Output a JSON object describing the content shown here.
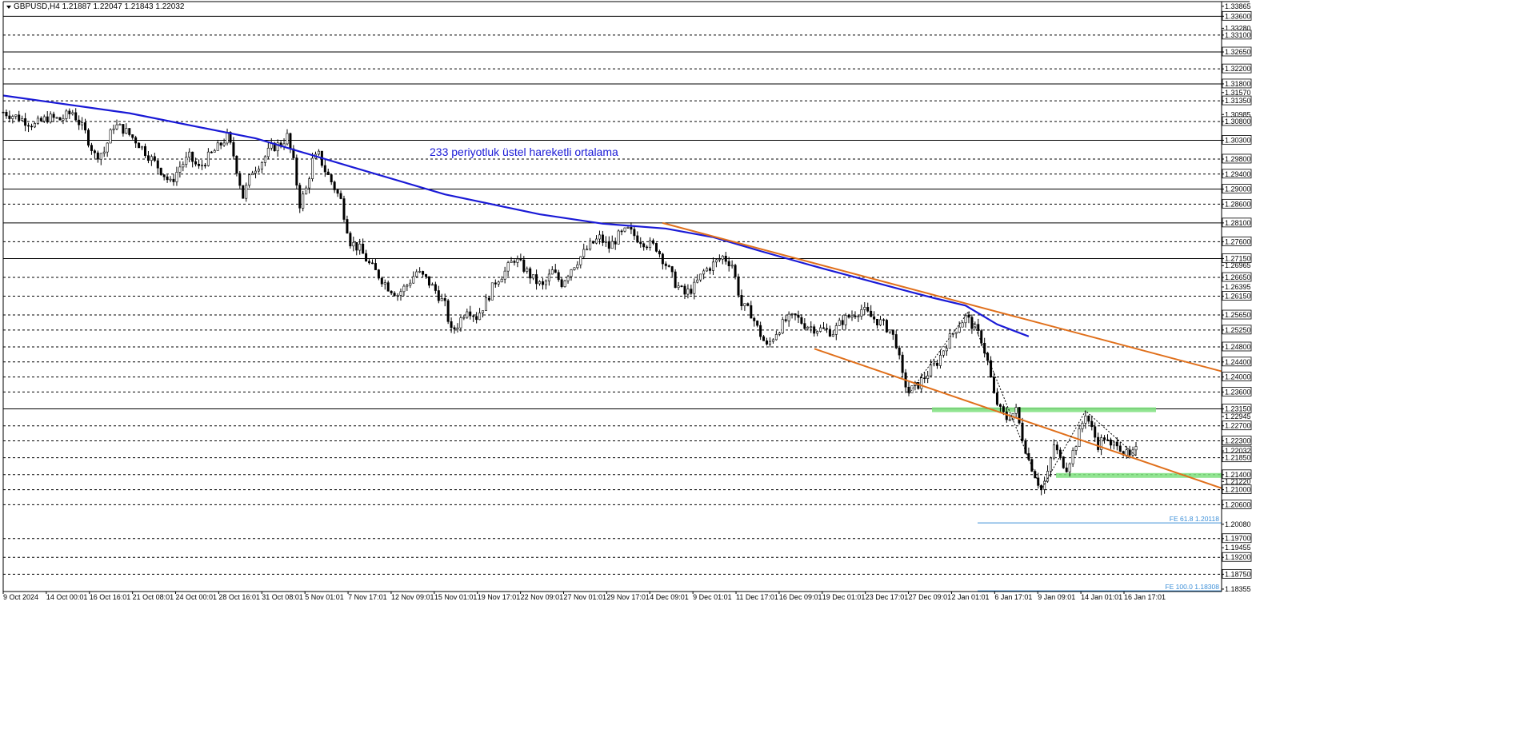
{
  "header": {
    "menu_icon": "triangle-down-icon",
    "symbol_info": "GBPUSD,H4  1.21887 1.22047 1.21843 1.22032"
  },
  "annotation_text": "233 periyotluk üstel hareketli ortalama",
  "chart_data": {
    "type": "candlestick",
    "symbol": "GBPUSD",
    "timeframe": "H4",
    "ohlc_last": {
      "open": 1.21887,
      "high": 1.22047,
      "low": 1.21843,
      "close": 1.22032
    },
    "ylim": [
      1.1835,
      1.33865
    ],
    "y_tick_labels": [
      "1.33865",
      "1.33600",
      "1.33280",
      "1.33100",
      "1.32650",
      "1.32200",
      "1.31800",
      "1.31570",
      "1.31350",
      "1.30985",
      "1.30800",
      "1.30300",
      "1.29800",
      "1.29400",
      "1.29000",
      "1.28600",
      "1.28100",
      "1.27600",
      "1.27150",
      "1.26965",
      "1.26650",
      "1.26395",
      "1.26150",
      "1.25650",
      "1.25250",
      "1.24800",
      "1.24400",
      "1.24000",
      "1.23600",
      "1.23150",
      "1.22945",
      "1.22700",
      "1.22300",
      "1.22032",
      "1.21850",
      "1.21400",
      "1.21220",
      "1.21000",
      "1.20600",
      "1.20080",
      "1.19700",
      "1.19455",
      "1.19200",
      "1.18750",
      "1.18355"
    ],
    "current_price": 1.22032,
    "x_tick_labels": [
      "9 Oct 2024",
      "14 Oct 00:01",
      "16 Oct 16:01",
      "21 Oct 08:01",
      "24 Oct 00:01",
      "28 Oct 16:01",
      "31 Oct 08:01",
      "5 Nov 01:01",
      "7 Nov 17:01",
      "12 Nov 09:01",
      "15 Nov 01:01",
      "19 Nov 17:01",
      "22 Nov 09:01",
      "27 Nov 01:01",
      "29 Nov 17:01",
      "4 Dec 09:01",
      "9 Dec 01:01",
      "11 Dec 17:01",
      "16 Dec 09:01",
      "19 Dec 01:01",
      "23 Dec 17:01",
      "27 Dec 09:01",
      "2 Jan 01:01",
      "6 Jan 17:01",
      "9 Jan 09:01",
      "14 Jan 01:01",
      "16 Jan 17:01"
    ],
    "solid_levels": [
      1.336,
      1.3265,
      1.318,
      1.303,
      1.29,
      1.281,
      1.2715,
      1.2315
    ],
    "dashed_levels": [
      1.331,
      1.322,
      1.3135,
      1.308,
      1.298,
      1.294,
      1.286,
      1.276,
      1.2665,
      1.2615,
      1.2565,
      1.2525,
      1.248,
      1.244,
      1.24,
      1.236,
      1.227,
      1.223,
      1.2185,
      1.214,
      1.21,
      1.206,
      1.197,
      1.192,
      1.1875
    ],
    "fib_levels": [
      {
        "label": "FE 61.8 1.20118",
        "price": 1.20118
      },
      {
        "label": "FE 100.0 1.18308",
        "price": 1.18308
      }
    ],
    "close_path": [
      [
        0,
        1.3105
      ],
      [
        5,
        1.309
      ],
      [
        10,
        1.307
      ],
      [
        14,
        1.309
      ],
      [
        18,
        1.3085
      ],
      [
        22,
        1.3105
      ],
      [
        26,
        1.305
      ],
      [
        29,
        1.299
      ],
      [
        32,
        1.3
      ],
      [
        35,
        1.307
      ],
      [
        38,
        1.306
      ],
      [
        42,
        1.303
      ],
      [
        46,
        1.299
      ],
      [
        50,
        1.295
      ],
      [
        53,
        1.2915
      ],
      [
        56,
        1.296
      ],
      [
        59,
        1.2985
      ],
      [
        62,
        1.2955
      ],
      [
        65,
        1.2985
      ],
      [
        68,
        1.301
      ],
      [
        71,
        1.304
      ],
      [
        73,
        1.299
      ],
      [
        76,
        1.288
      ],
      [
        79,
        1.295
      ],
      [
        82,
        1.2975
      ],
      [
        85,
        1.301
      ],
      [
        88,
        1.302
      ],
      [
        90,
        1.304
      ],
      [
        92,
        1.297
      ],
      [
        94,
        1.286
      ],
      [
        96,
        1.29
      ],
      [
        98,
        1.2975
      ],
      [
        100,
        1.299
      ],
      [
        102,
        1.295
      ],
      [
        104,
        1.292
      ],
      [
        107,
        1.287
      ],
      [
        110,
        1.276
      ],
      [
        113,
        1.274
      ],
      [
        116,
        1.27
      ],
      [
        119,
        1.267
      ],
      [
        122,
        1.264
      ],
      [
        125,
        1.262
      ],
      [
        128,
        1.2645
      ],
      [
        131,
        1.268
      ],
      [
        134,
        1.266
      ],
      [
        137,
        1.263
      ],
      [
        140,
        1.259
      ],
      [
        142,
        1.252
      ],
      [
        144,
        1.254
      ],
      [
        147,
        1.2585
      ],
      [
        150,
        1.256
      ],
      [
        153,
        1.26
      ],
      [
        156,
        1.2655
      ],
      [
        159,
        1.268
      ],
      [
        162,
        1.2715
      ],
      [
        165,
        1.269
      ],
      [
        168,
        1.266
      ],
      [
        171,
        1.264
      ],
      [
        174,
        1.268
      ],
      [
        177,
        1.265
      ],
      [
        180,
        1.269
      ],
      [
        183,
        1.272
      ],
      [
        186,
        1.275
      ],
      [
        189,
        1.277
      ],
      [
        192,
        1.2745
      ],
      [
        195,
        1.2775
      ],
      [
        198,
        1.279
      ],
      [
        201,
        1.277
      ],
      [
        204,
        1.2755
      ],
      [
        207,
        1.2745
      ],
      [
        210,
        1.27
      ],
      [
        213,
        1.265
      ],
      [
        216,
        1.262
      ],
      [
        219,
        1.264
      ],
      [
        222,
        1.268
      ],
      [
        225,
        1.27
      ],
      [
        228,
        1.272
      ],
      [
        231,
        1.27
      ],
      [
        234,
        1.259
      ],
      [
        237,
        1.257
      ],
      [
        239,
        1.253
      ],
      [
        242,
        1.248
      ],
      [
        245,
        1.252
      ],
      [
        248,
        1.255
      ],
      [
        251,
        1.256
      ],
      [
        254,
        1.254
      ],
      [
        257,
        1.253
      ],
      [
        260,
        1.2525
      ],
      [
        263,
        1.252
      ],
      [
        266,
        1.255
      ],
      [
        269,
        1.2565
      ],
      [
        272,
        1.258
      ],
      [
        275,
        1.256
      ],
      [
        278,
        1.2545
      ],
      [
        281,
        1.2525
      ],
      [
        283,
        1.249
      ],
      [
        285,
        1.24
      ],
      [
        287,
        1.236
      ],
      [
        290,
        1.238
      ],
      [
        293,
        1.241
      ],
      [
        296,
        1.244
      ],
      [
        299,
        1.249
      ],
      [
        302,
        1.253
      ],
      [
        305,
        1.256
      ],
      [
        307,
        1.254
      ],
      [
        310,
        1.25
      ],
      [
        312,
        1.244
      ],
      [
        314,
        1.235
      ],
      [
        316,
        1.231
      ],
      [
        318,
        1.229
      ],
      [
        321,
        1.231
      ],
      [
        323,
        1.224
      ],
      [
        325,
        1.218
      ],
      [
        327,
        1.214
      ],
      [
        329,
        1.21
      ],
      [
        331,
        1.214
      ],
      [
        333,
        1.222
      ],
      [
        335,
        1.218
      ],
      [
        337,
        1.216
      ],
      [
        339,
        1.22
      ],
      [
        341,
        1.225
      ],
      [
        343,
        1.2305
      ],
      [
        345,
        1.226
      ],
      [
        347,
        1.222
      ],
      [
        349,
        1.224
      ],
      [
        351,
        1.221
      ],
      [
        353,
        1.223
      ],
      [
        355,
        1.22
      ],
      [
        357,
        1.2185
      ],
      [
        359,
        1.2203
      ]
    ],
    "ema_233": [
      [
        0,
        1.3149
      ],
      [
        40,
        1.3102
      ],
      [
        80,
        1.3035
      ],
      [
        110,
        1.296
      ],
      [
        140,
        1.2886
      ],
      [
        170,
        1.2833
      ],
      [
        190,
        1.2808
      ],
      [
        210,
        1.2795
      ],
      [
        225,
        1.2772
      ],
      [
        240,
        1.2735
      ],
      [
        260,
        1.2688
      ],
      [
        280,
        1.2643
      ],
      [
        295,
        1.261
      ],
      [
        305,
        1.259
      ],
      [
        315,
        1.254
      ],
      [
        325,
        1.2508
      ]
    ],
    "x_count": 360
  }
}
